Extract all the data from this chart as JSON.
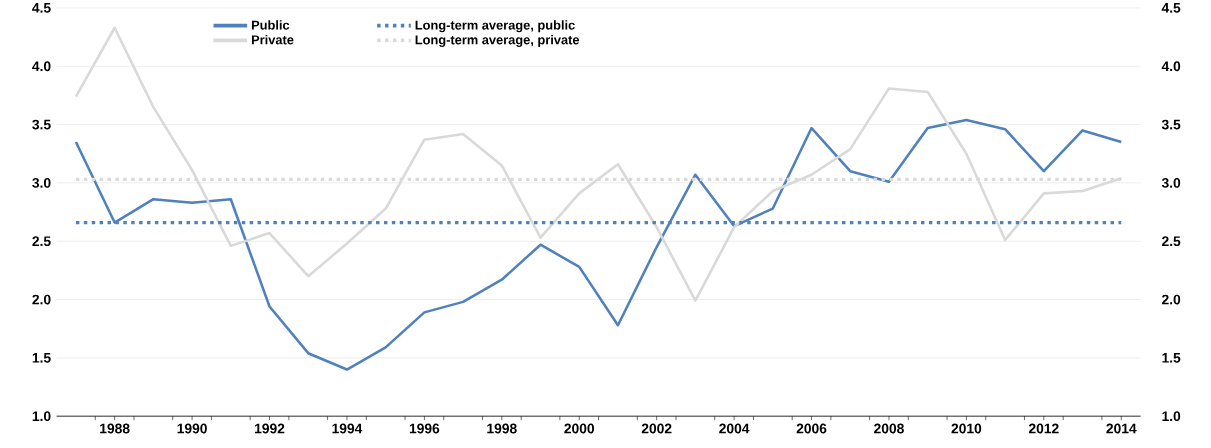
{
  "chart_data": {
    "type": "line",
    "x": [
      1987,
      1988,
      1989,
      1990,
      1991,
      1992,
      1993,
      1994,
      1995,
      1996,
      1997,
      1998,
      1999,
      2000,
      2001,
      2002,
      2003,
      2004,
      2005,
      2006,
      2007,
      2008,
      2009,
      2010,
      2011,
      2012,
      2013,
      2014
    ],
    "series": [
      {
        "name": "Public",
        "color": "#4f81bd",
        "values": [
          3.35,
          2.66,
          2.86,
          2.83,
          2.86,
          1.94,
          1.54,
          1.4,
          1.59,
          1.89,
          1.98,
          2.17,
          2.47,
          2.28,
          1.78,
          2.45,
          3.07,
          2.63,
          2.78,
          3.47,
          3.1,
          3.01,
          3.47,
          3.54,
          3.46,
          3.1,
          3.45,
          3.35
        ]
      },
      {
        "name": "Private",
        "color": "#d9d9d9",
        "values": [
          3.74,
          4.33,
          3.65,
          3.11,
          2.46,
          2.57,
          2.2,
          2.48,
          2.78,
          3.37,
          3.42,
          3.15,
          2.53,
          2.91,
          3.16,
          2.62,
          1.99,
          2.62,
          2.93,
          3.07,
          3.29,
          3.81,
          3.78,
          3.25,
          2.51,
          2.91,
          2.93,
          3.04
        ]
      }
    ],
    "ref_lines": [
      {
        "axis": "y",
        "value": 2.66,
        "label": "Long-term average, public",
        "color": "#4f81bd",
        "line_style": "dotted"
      },
      {
        "axis": "y",
        "value": 3.03,
        "label": "Long-term average, private",
        "color": "#d9d9d9",
        "line_style": "dotted"
      }
    ],
    "xlim": [
      1986.5,
      2014.5
    ],
    "xticks": [
      {
        "value": 1987.5,
        "label": null
      },
      {
        "value": 1988,
        "label": "1988"
      },
      {
        "value": 1988.5,
        "label": null
      },
      {
        "value": 1989.5,
        "label": null
      },
      {
        "value": 1990,
        "label": "1990"
      },
      {
        "value": 1990.5,
        "label": null
      },
      {
        "value": 1991.5,
        "label": null
      },
      {
        "value": 1992,
        "label": "1992"
      },
      {
        "value": 1992.5,
        "label": null
      },
      {
        "value": 1993.5,
        "label": null
      },
      {
        "value": 1994,
        "label": "1994"
      },
      {
        "value": 1994.5,
        "label": null
      },
      {
        "value": 1995.5,
        "label": null
      },
      {
        "value": 1996,
        "label": "1996"
      },
      {
        "value": 1996.5,
        "label": null
      },
      {
        "value": 1997.5,
        "label": null
      },
      {
        "value": 1998,
        "label": "1998"
      },
      {
        "value": 1998.5,
        "label": null
      },
      {
        "value": 1999.5,
        "label": null
      },
      {
        "value": 2000,
        "label": "2000"
      },
      {
        "value": 2000.5,
        "label": null
      },
      {
        "value": 2001.5,
        "label": null
      },
      {
        "value": 2002,
        "label": "2002"
      },
      {
        "value": 2002.5,
        "label": null
      },
      {
        "value": 2003.5,
        "label": null
      },
      {
        "value": 2004,
        "label": "2004"
      },
      {
        "value": 2004.5,
        "label": null
      },
      {
        "value": 2005.5,
        "label": null
      },
      {
        "value": 2006,
        "label": "2006"
      },
      {
        "value": 2006.5,
        "label": null
      },
      {
        "value": 2007.5,
        "label": null
      },
      {
        "value": 2008,
        "label": "2008"
      },
      {
        "value": 2008.5,
        "label": null
      },
      {
        "value": 2009.5,
        "label": null
      },
      {
        "value": 2010,
        "label": "2010"
      },
      {
        "value": 2010.5,
        "label": null
      },
      {
        "value": 2011.5,
        "label": null
      },
      {
        "value": 2012,
        "label": "2012"
      },
      {
        "value": 2012.5,
        "label": null
      },
      {
        "value": 2013.5,
        "label": null
      },
      {
        "value": 2014,
        "label": "2014"
      }
    ],
    "ylim": [
      1.0,
      4.5
    ],
    "yticks": [
      {
        "value": 1.0,
        "label": "1.0"
      },
      {
        "value": 1.5,
        "label": "1.5"
      },
      {
        "value": 2.0,
        "label": "2.0"
      },
      {
        "value": 2.5,
        "label": "2.5"
      },
      {
        "value": 3.0,
        "label": "3.0"
      },
      {
        "value": 3.5,
        "label": "3.5"
      },
      {
        "value": 4.0,
        "label": "4.0"
      },
      {
        "value": 4.5,
        "label": "4.5"
      }
    ],
    "y2lim": [
      1.0,
      4.5
    ],
    "y2ticks": [
      {
        "value": 1.0,
        "label": "1.0"
      },
      {
        "value": 1.5,
        "label": "1.5"
      },
      {
        "value": 2.0,
        "label": "2.0"
      },
      {
        "value": 2.5,
        "label": "2.5"
      },
      {
        "value": 3.0,
        "label": "3.0"
      },
      {
        "value": 3.5,
        "label": "3.5"
      },
      {
        "value": 4.0,
        "label": "4.0"
      },
      {
        "value": 4.5,
        "label": "4.5"
      }
    ],
    "grid": "y",
    "legend": "top",
    "line_style": "solid",
    "marker": "none"
  }
}
